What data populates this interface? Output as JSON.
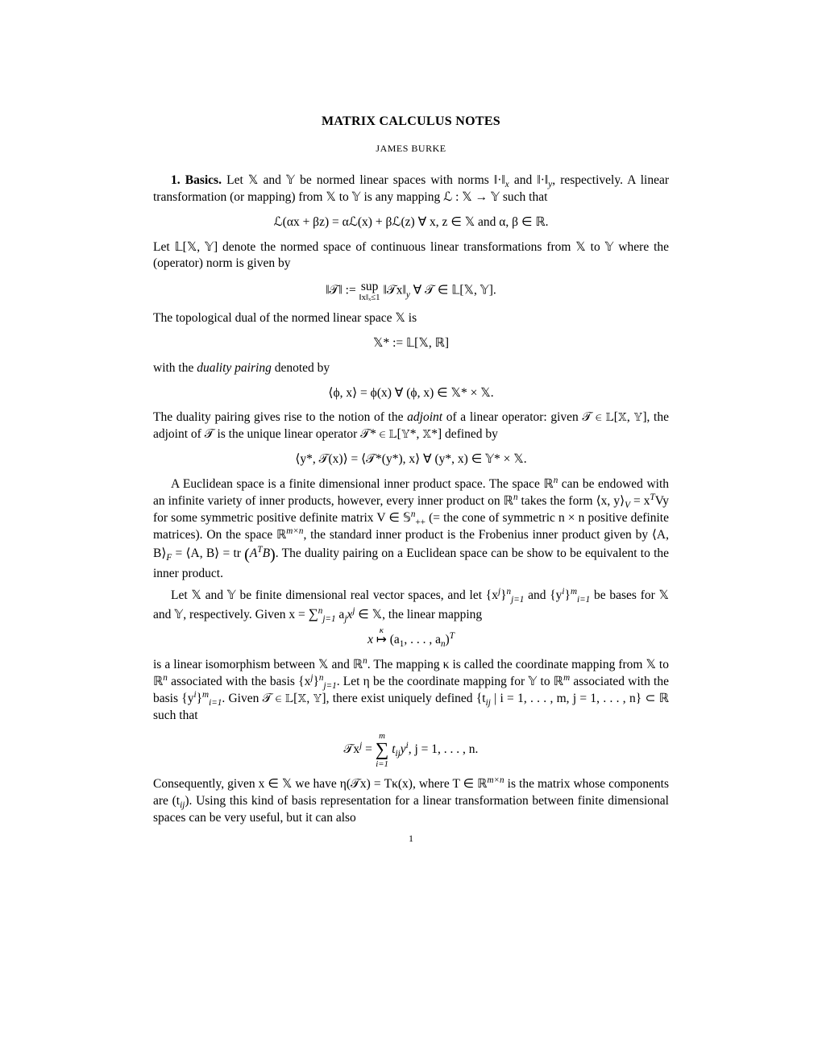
{
  "title": "MATRIX CALCULUS NOTES",
  "author": "JAMES BURKE",
  "section1_head": "1. Basics.",
  "p1a": " Let 𝕏 and 𝕐 be normed linear spaces with norms ‖·‖",
  "p1a_sub1": "x",
  "p1b": " and ‖·‖",
  "p1b_sub1": "y",
  "p1c": ", respectively. A linear transformation (or mapping) from 𝕏 to 𝕐 is any mapping ℒ : 𝕏 → 𝕐 such that",
  "eq1": "ℒ(αx + βz) = αℒ(x) + βℒ(z)   ∀ x, z ∈ 𝕏 and α, β ∈ ℝ.",
  "p2": "Let 𝕃[𝕏, 𝕐] denote the normed space of continuous linear transformations from 𝕏 to 𝕐 where the (operator) norm is given by",
  "eq2a": "‖𝒯‖ := ",
  "eq2_sup_top": " ",
  "eq2_sup_mid": "sup",
  "eq2_sup_bot": "‖x‖ₓ≤1",
  "eq2b": " ‖𝒯x‖",
  "eq2b_sub": "y",
  "eq2c": "   ∀ 𝒯 ∈ 𝕃[𝕏, 𝕐].",
  "p3": "The topological dual of the normed linear space 𝕏 is",
  "eq3": "𝕏* := 𝕃[𝕏, ℝ]",
  "p4a": "with the ",
  "p4_em": "duality pairing",
  "p4b": " denoted by",
  "eq4": "⟨ϕ, x⟩ = ϕ(x)   ∀ (ϕ, x) ∈ 𝕏* × 𝕏.",
  "p5a": "The duality pairing gives rise to the notion of the ",
  "p5_em": "adjoint",
  "p5b": " of a linear operator: given 𝒯 ∈ 𝕃[𝕏, 𝕐], the adjoint of 𝒯 is the unique linear operator 𝒯* ∈ 𝕃[𝕐*, 𝕏*] defined by",
  "eq5": "⟨y*, 𝒯(x)⟩ = ⟨𝒯*(y*), x⟩   ∀ (y*, x) ∈ 𝕐* × 𝕏.",
  "p6a": "A Euclidean space is a finite dimensional inner product space. The space ℝ",
  "p6a_sup": "n",
  "p6b": " can be endowed with an infinite variety of inner products, however, every inner product on ℝ",
  "p6b_sup": "n",
  "p6c": " takes the form ⟨x, y⟩",
  "p6c_sub": "V",
  "p6d": " = x",
  "p6d_sup": "T",
  "p6e": "Vy for some symmetric positive definite matrix V ∈ 𝕊",
  "p6e_sup": "n",
  "p6e_sub": "++",
  "p6f": " (= the cone of symmetric n × n positive definite matrices). On the space ℝ",
  "p6f_sup": "m×n",
  "p6g": ", the standard inner product is the Frobenius inner product given by ⟨A, B⟩",
  "p6g_sub": "F",
  "p6h": " = ⟨A, B⟩ = tr ",
  "p6h_paren": "(A",
  "p6h_sup": "T",
  "p6i": "B)",
  "p6j": ". The duality pairing on a Euclidean space can be show to be equivalent to the inner product.",
  "p7a": "Let 𝕏 and 𝕐 be finite dimensional real vector spaces, and let {x",
  "p7a_sup": "j",
  "p7b": "}",
  "p7b_sup": "n",
  "p7b_sub": "j=1",
  "p7c": " and {y",
  "p7c_sup": "i",
  "p7d": "}",
  "p7d_sup": "m",
  "p7d_sub": "i=1",
  "p7e": " be bases for 𝕏 and 𝕐, respectively. Given x = ",
  "p7_sum": "∑",
  "p7_sum_sup": "n",
  "p7_sum_sub": "j=1",
  "p7f": " a",
  "p7f_sub": "j",
  "p7g": "x",
  "p7g_sup": "j",
  "p7h": " ∈ 𝕏, the linear mapping",
  "eq6a": "x ",
  "eq6_arrow_top": "κ",
  "eq6_arrow": "↦",
  "eq6b": " (a",
  "eq6b_sub": "1",
  "eq6c": ", . . . , a",
  "eq6c_sub": "n",
  "eq6d": ")",
  "eq6d_sup": "T",
  "p8a": "is a linear isomorphism between 𝕏 and ℝ",
  "p8a_sup": "n",
  "p8b": ". The mapping κ is called the coordinate mapping from 𝕏 to ℝ",
  "p8b_sup": "n",
  "p8c": " associated with the basis {x",
  "p8c_sup": "j",
  "p8d": "}",
  "p8d_sup": "n",
  "p8d_sub": "j=1",
  "p8e": ". Let η be the coordinate mapping for 𝕐 to ℝ",
  "p8e_sup": "m",
  "p8f": " associated with the basis {y",
  "p8f_sup": "i",
  "p8g": "}",
  "p8g_sup": "m",
  "p8g_sub": "i=1",
  "p8h": ". Given 𝒯 ∈ 𝕃[𝕏, 𝕐], there exist uniquely defined {t",
  "p8h_sub": "ij",
  "p8i": " | i = 1, . . . , m,  j = 1, . . . , n} ⊂ ℝ such that",
  "eq7a": "𝒯x",
  "eq7a_sup": "j",
  "eq7b": " = ",
  "eq7_sum_top": "m",
  "eq7_sum": "∑",
  "eq7_sum_bot": "i=1",
  "eq7c": " t",
  "eq7c_sub": "ij",
  "eq7d": "y",
  "eq7d_sup": "i",
  "eq7e": ",  j = 1, . . . , n.",
  "p9a": "Consequently, given x ∈ 𝕏 we have η(𝒯x) = Tκ(x), where T ∈ ℝ",
  "p9a_sup": "m×n",
  "p9b": " is the matrix whose components are (t",
  "p9b_sub": "ij",
  "p9c": "). Using this kind of basis representation for a linear transformation between finite dimensional spaces can be very useful, but it can also",
  "pagenum": "1"
}
